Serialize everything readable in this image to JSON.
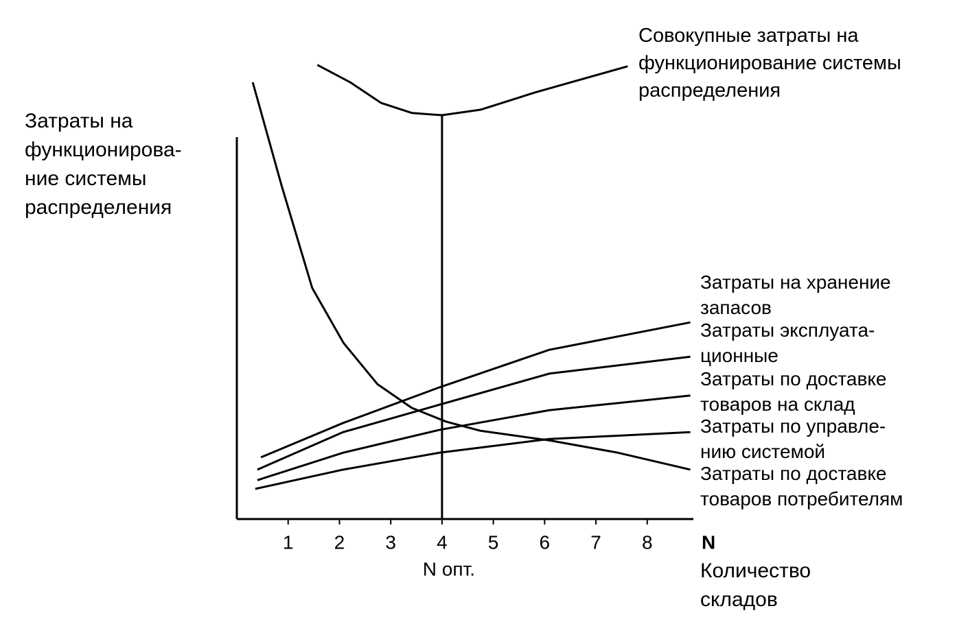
{
  "chart_data": {
    "type": "line",
    "y_label": "Затраты на\nфункционирова-\nние системы\nраспределения",
    "x_label": "N",
    "x_label_sub": "Количество\nскладов",
    "xlim": [
      0,
      8.9
    ],
    "xticks": [
      1,
      2,
      3,
      4,
      5,
      6,
      7,
      8
    ],
    "ylim": [
      0,
      100
    ],
    "optimum": {
      "x": 4,
      "label": "N опт."
    },
    "series": [
      {
        "name": "Совокупные затраты на\nфункционирование системы\nраспределения",
        "color": "#000000",
        "x": [
          1.57,
          2.21,
          2.81,
          3.41,
          4.0,
          4.75,
          5.82,
          6.89,
          7.62
        ],
        "values": [
          99.3,
          95.5,
          91,
          88.8,
          88.3,
          89.5,
          93.3,
          96.7,
          99
        ]
      },
      {
        "name": "Затраты на хранение\nзапасов",
        "color": "#000000",
        "x": [
          0.47,
          2.07,
          3.95,
          6.09,
          8.84
        ],
        "values": [
          13.5,
          21,
          28.8,
          37,
          43
        ]
      },
      {
        "name": "Затраты эксплуата-\nционные",
        "color": "#000000",
        "x": [
          0.4,
          2.07,
          3.95,
          6.09,
          8.84
        ],
        "values": [
          10.8,
          19,
          25,
          31.8,
          35.5
        ]
      },
      {
        "name": "Затраты по доставке\nтоваров на склад",
        "color": "#000000",
        "x": [
          0.4,
          2.07,
          3.95,
          6.09,
          8.84
        ],
        "values": [
          8.5,
          14.5,
          19.5,
          23.8,
          27
        ]
      },
      {
        "name": "Затраты по управле-\nнию системой",
        "color": "#000000",
        "x": [
          0.36,
          2.07,
          3.95,
          6.09,
          8.84
        ],
        "values": [
          6.6,
          10.8,
          14.5,
          17.5,
          19
        ]
      },
      {
        "name": "Затраты по доставке\nтоваров потребителям",
        "color": "#000000",
        "x": [
          0.31,
          0.87,
          1.47,
          2.08,
          2.74,
          3.41,
          4.08,
          4.75,
          6.09,
          7.43,
          8.84
        ],
        "values": [
          95.5,
          73,
          50.5,
          38.5,
          29.5,
          24.3,
          21.3,
          19.3,
          17.2,
          14.5,
          10.8
        ]
      }
    ]
  }
}
